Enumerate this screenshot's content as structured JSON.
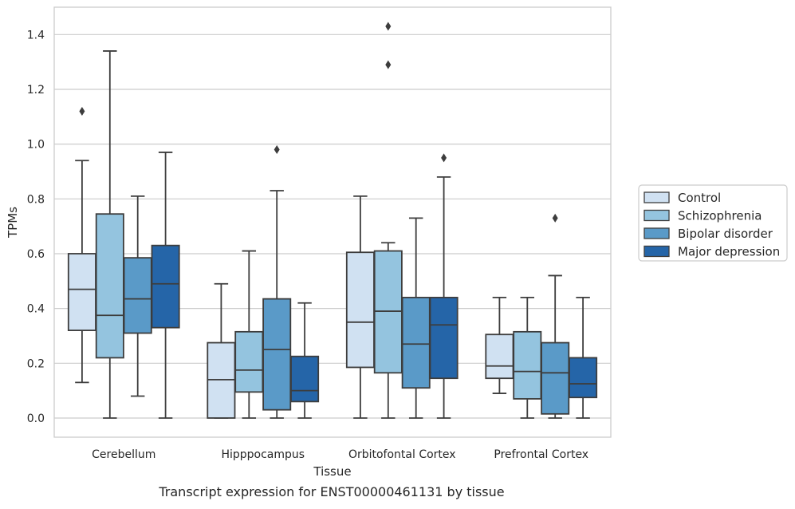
{
  "chart_data": {
    "type": "boxplot",
    "xlabel": "Tissue",
    "ylabel": "TPMs",
    "caption": "Transcript expression for ENST00000461131 by tissue",
    "ylim": [
      -0.07,
      1.5
    ],
    "y_ticks": [
      "0.0",
      "0.2",
      "0.4",
      "0.6",
      "0.8",
      "1.0",
      "1.2",
      "1.4"
    ],
    "grid": true,
    "legend_placement": "right",
    "categories": [
      "Cerebellum",
      "Hipppocampus",
      "Orbitofontal Cortex",
      "Prefrontal Cortex"
    ],
    "series": [
      {
        "name": "Control",
        "color": "#d0e1f2",
        "boxes": [
          {
            "whislo": 0.13,
            "q1": 0.32,
            "med": 0.47,
            "q3": 0.6,
            "whishi": 0.94,
            "fliers": [
              1.12
            ]
          },
          {
            "whislo": 0.0,
            "q1": 0.0,
            "med": 0.14,
            "q3": 0.275,
            "whishi": 0.49,
            "fliers": []
          },
          {
            "whislo": 0.0,
            "q1": 0.185,
            "med": 0.35,
            "q3": 0.605,
            "whishi": 0.81,
            "fliers": []
          },
          {
            "whislo": 0.09,
            "q1": 0.145,
            "med": 0.19,
            "q3": 0.305,
            "whishi": 0.44,
            "fliers": []
          }
        ]
      },
      {
        "name": "Schizophrenia",
        "color": "#94c4df",
        "boxes": [
          {
            "whislo": 0.0,
            "q1": 0.22,
            "med": 0.375,
            "q3": 0.745,
            "whishi": 1.34,
            "fliers": []
          },
          {
            "whislo": 0.0,
            "q1": 0.095,
            "med": 0.175,
            "q3": 0.315,
            "whishi": 0.61,
            "fliers": []
          },
          {
            "whislo": 0.0,
            "q1": 0.165,
            "med": 0.39,
            "q3": 0.61,
            "whishi": 0.64,
            "fliers": [
              1.29,
              1.43
            ]
          },
          {
            "whislo": 0.0,
            "q1": 0.07,
            "med": 0.17,
            "q3": 0.315,
            "whishi": 0.44,
            "fliers": []
          }
        ]
      },
      {
        "name": "Bipolar disorder",
        "color": "#5a9ac8",
        "boxes": [
          {
            "whislo": 0.08,
            "q1": 0.31,
            "med": 0.435,
            "q3": 0.585,
            "whishi": 0.81,
            "fliers": []
          },
          {
            "whislo": 0.0,
            "q1": 0.03,
            "med": 0.25,
            "q3": 0.435,
            "whishi": 0.83,
            "fliers": [
              0.98
            ]
          },
          {
            "whislo": 0.0,
            "q1": 0.11,
            "med": 0.27,
            "q3": 0.44,
            "whishi": 0.73,
            "fliers": []
          },
          {
            "whislo": 0.0,
            "q1": 0.015,
            "med": 0.165,
            "q3": 0.275,
            "whishi": 0.52,
            "fliers": [
              0.73
            ]
          }
        ]
      },
      {
        "name": "Major depression",
        "color": "#2565a8",
        "boxes": [
          {
            "whislo": 0.0,
            "q1": 0.33,
            "med": 0.49,
            "q3": 0.63,
            "whishi": 0.97,
            "fliers": []
          },
          {
            "whislo": 0.0,
            "q1": 0.06,
            "med": 0.1,
            "q3": 0.225,
            "whishi": 0.42,
            "fliers": []
          },
          {
            "whislo": 0.0,
            "q1": 0.145,
            "med": 0.34,
            "q3": 0.44,
            "whishi": 0.88,
            "fliers": [
              0.95
            ]
          },
          {
            "whislo": 0.0,
            "q1": 0.075,
            "med": 0.125,
            "q3": 0.22,
            "whishi": 0.44,
            "fliers": []
          }
        ]
      }
    ]
  }
}
